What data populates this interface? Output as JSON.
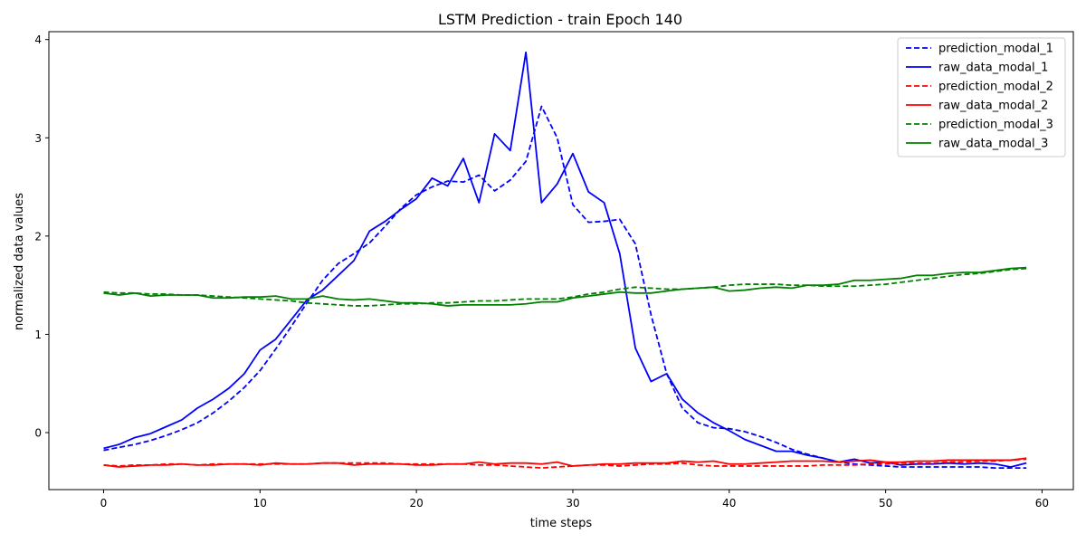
{
  "chart_data": {
    "type": "line",
    "title": "LSTM Prediction - train Epoch 140",
    "xlabel": "time steps",
    "ylabel": "normalized data values",
    "xlim": [
      -3.5,
      62
    ],
    "ylim": [
      -0.58,
      4.08
    ],
    "xticks": [
      0,
      10,
      20,
      30,
      40,
      50,
      60
    ],
    "yticks": [
      0,
      1,
      2,
      3,
      4
    ],
    "grid": false,
    "legend_position": "top-right",
    "x": [
      0,
      1,
      2,
      3,
      4,
      5,
      6,
      7,
      8,
      9,
      10,
      11,
      12,
      13,
      14,
      15,
      16,
      17,
      18,
      19,
      20,
      21,
      22,
      23,
      24,
      25,
      26,
      27,
      28,
      29,
      30,
      31,
      32,
      33,
      34,
      35,
      36,
      37,
      38,
      39,
      40,
      41,
      42,
      43,
      44,
      45,
      46,
      47,
      48,
      49,
      50,
      51,
      52,
      53,
      54,
      55,
      56,
      57,
      58,
      59
    ],
    "series": [
      {
        "name": "prediction_modal_1",
        "color": "#0000ff",
        "dashed": true,
        "values": [
          -0.18,
          -0.15,
          -0.12,
          -0.08,
          -0.03,
          0.03,
          0.1,
          0.2,
          0.32,
          0.46,
          0.63,
          0.85,
          1.08,
          1.32,
          1.55,
          1.72,
          1.82,
          1.93,
          2.1,
          2.28,
          2.42,
          2.5,
          2.56,
          2.55,
          2.62,
          2.46,
          2.57,
          2.76,
          3.32,
          3.0,
          2.32,
          2.14,
          2.15,
          2.17,
          1.92,
          1.2,
          0.6,
          0.25,
          0.1,
          0.05,
          0.04,
          0.01,
          -0.04,
          -0.1,
          -0.17,
          -0.22,
          -0.26,
          -0.3,
          -0.32,
          -0.33,
          -0.34,
          -0.35,
          -0.35,
          -0.35,
          -0.35,
          -0.35,
          -0.35,
          -0.36,
          -0.36,
          -0.36
        ]
      },
      {
        "name": "raw_data_modal_1",
        "color": "#0000ff",
        "dashed": false,
        "values": [
          -0.16,
          -0.12,
          -0.05,
          -0.01,
          0.06,
          0.13,
          0.25,
          0.34,
          0.45,
          0.6,
          0.84,
          0.95,
          1.15,
          1.35,
          1.45,
          1.6,
          1.75,
          2.05,
          2.15,
          2.27,
          2.38,
          2.59,
          2.51,
          2.79,
          2.34,
          3.04,
          2.87,
          3.87,
          2.34,
          2.53,
          2.84,
          2.45,
          2.34,
          1.82,
          0.86,
          0.52,
          0.6,
          0.34,
          0.2,
          0.1,
          0.02,
          -0.07,
          -0.13,
          -0.19,
          -0.19,
          -0.23,
          -0.26,
          -0.3,
          -0.27,
          -0.31,
          -0.3,
          -0.33,
          -0.32,
          -0.32,
          -0.31,
          -0.32,
          -0.31,
          -0.32,
          -0.35,
          -0.31
        ]
      },
      {
        "name": "prediction_modal_2",
        "color": "#ff0000",
        "dashed": true,
        "values": [
          -0.33,
          -0.34,
          -0.33,
          -0.33,
          -0.32,
          -0.32,
          -0.33,
          -0.32,
          -0.32,
          -0.32,
          -0.32,
          -0.32,
          -0.32,
          -0.32,
          -0.31,
          -0.31,
          -0.31,
          -0.31,
          -0.31,
          -0.32,
          -0.32,
          -0.32,
          -0.32,
          -0.32,
          -0.33,
          -0.33,
          -0.34,
          -0.35,
          -0.36,
          -0.35,
          -0.34,
          -0.33,
          -0.33,
          -0.34,
          -0.33,
          -0.32,
          -0.32,
          -0.31,
          -0.33,
          -0.34,
          -0.34,
          -0.34,
          -0.34,
          -0.34,
          -0.34,
          -0.34,
          -0.33,
          -0.33,
          -0.33,
          -0.32,
          -0.32,
          -0.31,
          -0.31,
          -0.31,
          -0.3,
          -0.3,
          -0.29,
          -0.29,
          -0.28,
          -0.27
        ]
      },
      {
        "name": "raw_data_modal_2",
        "color": "#ff0000",
        "dashed": false,
        "values": [
          -0.33,
          -0.35,
          -0.34,
          -0.33,
          -0.33,
          -0.32,
          -0.33,
          -0.33,
          -0.32,
          -0.32,
          -0.33,
          -0.31,
          -0.32,
          -0.32,
          -0.31,
          -0.31,
          -0.33,
          -0.32,
          -0.32,
          -0.32,
          -0.33,
          -0.33,
          -0.32,
          -0.32,
          -0.3,
          -0.32,
          -0.31,
          -0.31,
          -0.32,
          -0.3,
          -0.34,
          -0.33,
          -0.32,
          -0.32,
          -0.31,
          -0.31,
          -0.31,
          -0.29,
          -0.3,
          -0.29,
          -0.32,
          -0.32,
          -0.31,
          -0.3,
          -0.29,
          -0.29,
          -0.29,
          -0.3,
          -0.29,
          -0.28,
          -0.3,
          -0.3,
          -0.29,
          -0.29,
          -0.28,
          -0.28,
          -0.28,
          -0.28,
          -0.28,
          -0.26
        ]
      },
      {
        "name": "prediction_modal_3",
        "color": "#008000",
        "dashed": true,
        "values": [
          1.43,
          1.42,
          1.42,
          1.41,
          1.41,
          1.4,
          1.4,
          1.39,
          1.38,
          1.37,
          1.36,
          1.35,
          1.34,
          1.32,
          1.31,
          1.3,
          1.29,
          1.29,
          1.3,
          1.31,
          1.31,
          1.32,
          1.32,
          1.33,
          1.34,
          1.34,
          1.35,
          1.36,
          1.36,
          1.36,
          1.38,
          1.41,
          1.43,
          1.46,
          1.48,
          1.47,
          1.46,
          1.46,
          1.47,
          1.48,
          1.5,
          1.51,
          1.51,
          1.51,
          1.5,
          1.5,
          1.49,
          1.49,
          1.49,
          1.5,
          1.51,
          1.53,
          1.55,
          1.57,
          1.59,
          1.61,
          1.62,
          1.64,
          1.66,
          1.67
        ]
      },
      {
        "name": "raw_data_modal_3",
        "color": "#008000",
        "dashed": false,
        "values": [
          1.42,
          1.4,
          1.42,
          1.39,
          1.4,
          1.4,
          1.4,
          1.37,
          1.37,
          1.38,
          1.38,
          1.39,
          1.36,
          1.36,
          1.39,
          1.36,
          1.35,
          1.36,
          1.34,
          1.32,
          1.32,
          1.31,
          1.29,
          1.3,
          1.3,
          1.3,
          1.3,
          1.31,
          1.33,
          1.33,
          1.37,
          1.39,
          1.41,
          1.43,
          1.42,
          1.42,
          1.44,
          1.46,
          1.47,
          1.48,
          1.44,
          1.45,
          1.47,
          1.48,
          1.47,
          1.5,
          1.5,
          1.51,
          1.55,
          1.55,
          1.56,
          1.57,
          1.6,
          1.6,
          1.62,
          1.63,
          1.63,
          1.65,
          1.67,
          1.68
        ]
      }
    ]
  }
}
